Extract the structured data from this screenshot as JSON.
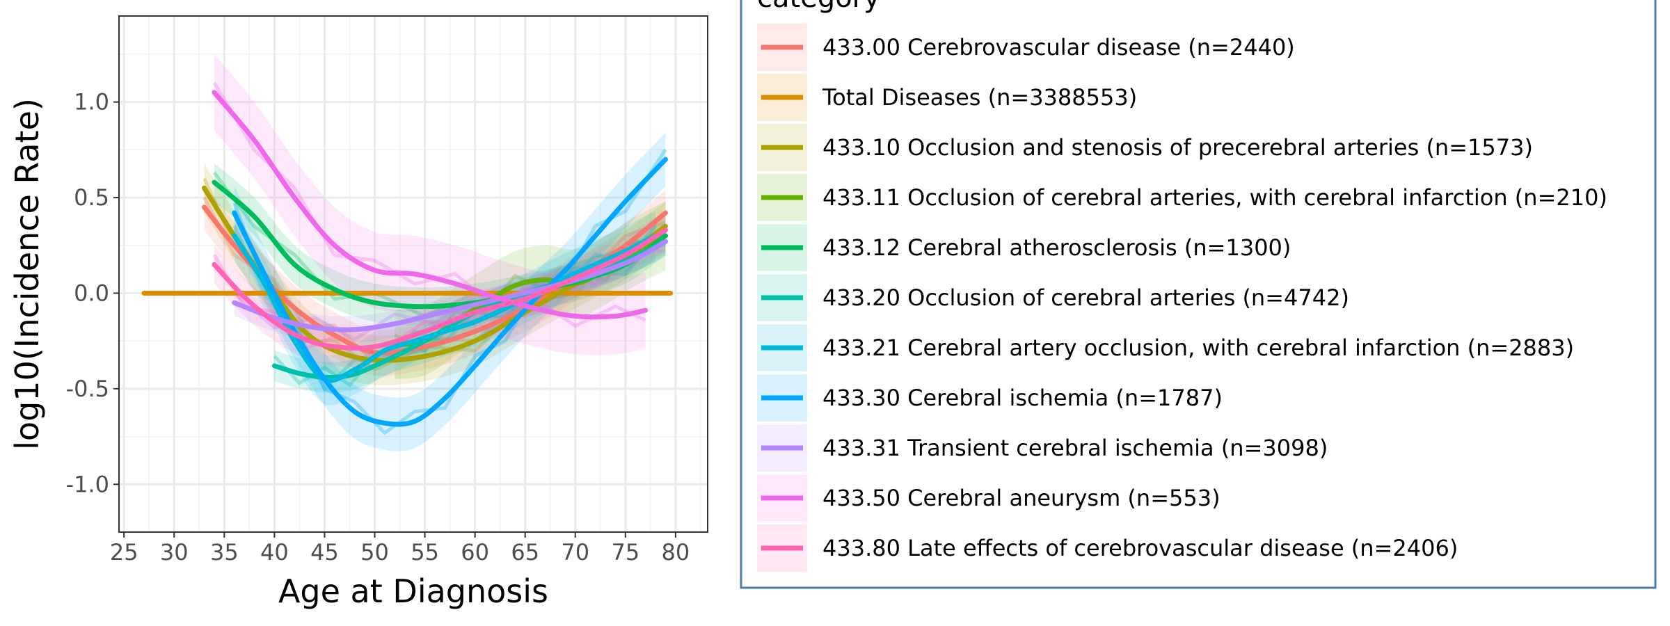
{
  "chart_data": {
    "type": "line",
    "xlabel": "Age at Diagnosis",
    "ylabel": "log10(Incidence Rate)",
    "xlim": [
      24.5,
      83.2
    ],
    "ylim": [
      -1.25,
      1.45
    ],
    "x_ticks": [
      25,
      30,
      35,
      40,
      45,
      50,
      55,
      60,
      65,
      70,
      75,
      80
    ],
    "x_tick_labels": [
      "25",
      "30",
      "35",
      "40",
      "45",
      "50",
      "55",
      "60",
      "65",
      "70",
      "75",
      "80"
    ],
    "y_ticks": [
      -1.0,
      -0.5,
      0.0,
      0.5,
      1.0
    ],
    "y_tick_labels": [
      "-1.0",
      "-0.5",
      "0.0",
      "0.5",
      "1.0"
    ],
    "grid": true,
    "legend": {
      "title": "category",
      "placement": "right"
    },
    "series": [
      {
        "name": "433.00 Cerebrovascular disease (n=2440)",
        "color": "#F8766D",
        "x": [
          33,
          36,
          40,
          43,
          46,
          50,
          55,
          60,
          65,
          70,
          75,
          79
        ],
        "y": [
          0.45,
          0.25,
          0.02,
          -0.12,
          -0.22,
          -0.31,
          -0.28,
          -0.2,
          -0.08,
          0.08,
          0.25,
          0.42
        ],
        "band": 0.12
      },
      {
        "name": "Total Diseases (n=3388553)",
        "color": "#DB8E00",
        "x": [
          27,
          79.5
        ],
        "y": [
          0.0,
          0.0
        ],
        "band": 0.0
      },
      {
        "name": "433.10 Occlusion and stenosis of precerebral arteries (n=1573)",
        "color": "#AEA200",
        "x": [
          33,
          36,
          40,
          43,
          46,
          50,
          55,
          60,
          65,
          70,
          75,
          79
        ],
        "y": [
          0.55,
          0.3,
          0.0,
          -0.2,
          -0.3,
          -0.35,
          -0.33,
          -0.25,
          -0.1,
          0.05,
          0.2,
          0.35
        ],
        "band": 0.13
      },
      {
        "name": "433.11 Occlusion of cerebral arteries, with cerebral infarction (n=210)",
        "color": "#64B200",
        "x": [
          52,
          55,
          58,
          61,
          64,
          67,
          70,
          73,
          76,
          79
        ],
        "y": [
          -0.27,
          -0.25,
          -0.15,
          -0.05,
          0.04,
          0.07,
          0.05,
          0.12,
          0.22,
          0.3
        ],
        "band": 0.18
      },
      {
        "name": "433.12 Cerebral atherosclerosis (n=1300)",
        "color": "#00BD5C",
        "x": [
          34,
          38,
          42,
          46,
          50,
          55,
          60,
          65,
          70,
          75,
          79
        ],
        "y": [
          0.58,
          0.4,
          0.15,
          0.02,
          -0.05,
          -0.07,
          -0.05,
          0.0,
          0.06,
          0.15,
          0.3
        ],
        "band": 0.1
      },
      {
        "name": "433.20 Occlusion of cerebral arteries (n=4742)",
        "color": "#00C1A7",
        "x": [
          40,
          42.5,
          45,
          47.5,
          50,
          55,
          60,
          65,
          70,
          75,
          79
        ],
        "y": [
          -0.38,
          -0.42,
          -0.44,
          -0.43,
          -0.38,
          -0.25,
          -0.1,
          0.0,
          0.08,
          0.17,
          0.27
        ],
        "band": 0.08
      },
      {
        "name": "433.21 Cerebral artery occlusion, with cerebral infarction (n=2883)",
        "color": "#00BADE",
        "x": [
          36,
          39,
          42,
          45,
          48,
          51,
          54,
          57,
          60,
          63,
          66,
          69,
          72,
          75,
          78
        ],
        "y": [
          0.3,
          0.05,
          -0.25,
          -0.45,
          -0.4,
          -0.3,
          -0.25,
          -0.2,
          -0.15,
          -0.08,
          0.0,
          0.08,
          0.15,
          0.22,
          0.3
        ],
        "band": 0.13
      },
      {
        "name": "433.30 Cerebral ischemia (n=1787)",
        "color": "#00A6FF",
        "x": [
          36,
          39,
          42,
          45,
          48,
          51,
          54,
          57,
          60,
          63,
          66,
          69,
          72,
          75,
          79
        ],
        "y": [
          0.42,
          0.1,
          -0.2,
          -0.45,
          -0.62,
          -0.68,
          -0.67,
          -0.55,
          -0.38,
          -0.2,
          -0.03,
          0.12,
          0.3,
          0.48,
          0.7
        ],
        "band": 0.14
      },
      {
        "name": "433.31 Transient cerebral ischemia (n=3098)",
        "color": "#B385FF",
        "x": [
          36,
          40,
          44,
          48,
          52,
          56,
          60,
          64,
          68,
          72,
          76,
          79
        ],
        "y": [
          -0.05,
          -0.13,
          -0.18,
          -0.19,
          -0.16,
          -0.11,
          -0.06,
          -0.01,
          0.04,
          0.1,
          0.18,
          0.27
        ],
        "band": 0.07
      },
      {
        "name": "433.50 Cerebral aneurysm (n=553)",
        "color": "#EF67EB",
        "x": [
          34,
          38,
          42,
          46,
          50,
          54,
          58,
          62,
          66,
          70,
          74,
          77
        ],
        "y": [
          1.05,
          0.8,
          0.5,
          0.25,
          0.12,
          0.1,
          0.05,
          -0.02,
          -0.08,
          -0.12,
          -0.12,
          -0.09
        ],
        "band": 0.2
      },
      {
        "name": "433.80 Late effects of cerebrovascular disease (n=2406)",
        "color": "#FF63B6",
        "x": [
          34,
          37,
          40,
          43,
          46,
          50,
          55,
          60,
          65,
          70,
          75,
          79
        ],
        "y": [
          0.15,
          -0.02,
          -0.15,
          -0.24,
          -0.28,
          -0.28,
          -0.2,
          -0.1,
          -0.03,
          0.08,
          0.2,
          0.33
        ],
        "band": 0.1
      }
    ]
  }
}
